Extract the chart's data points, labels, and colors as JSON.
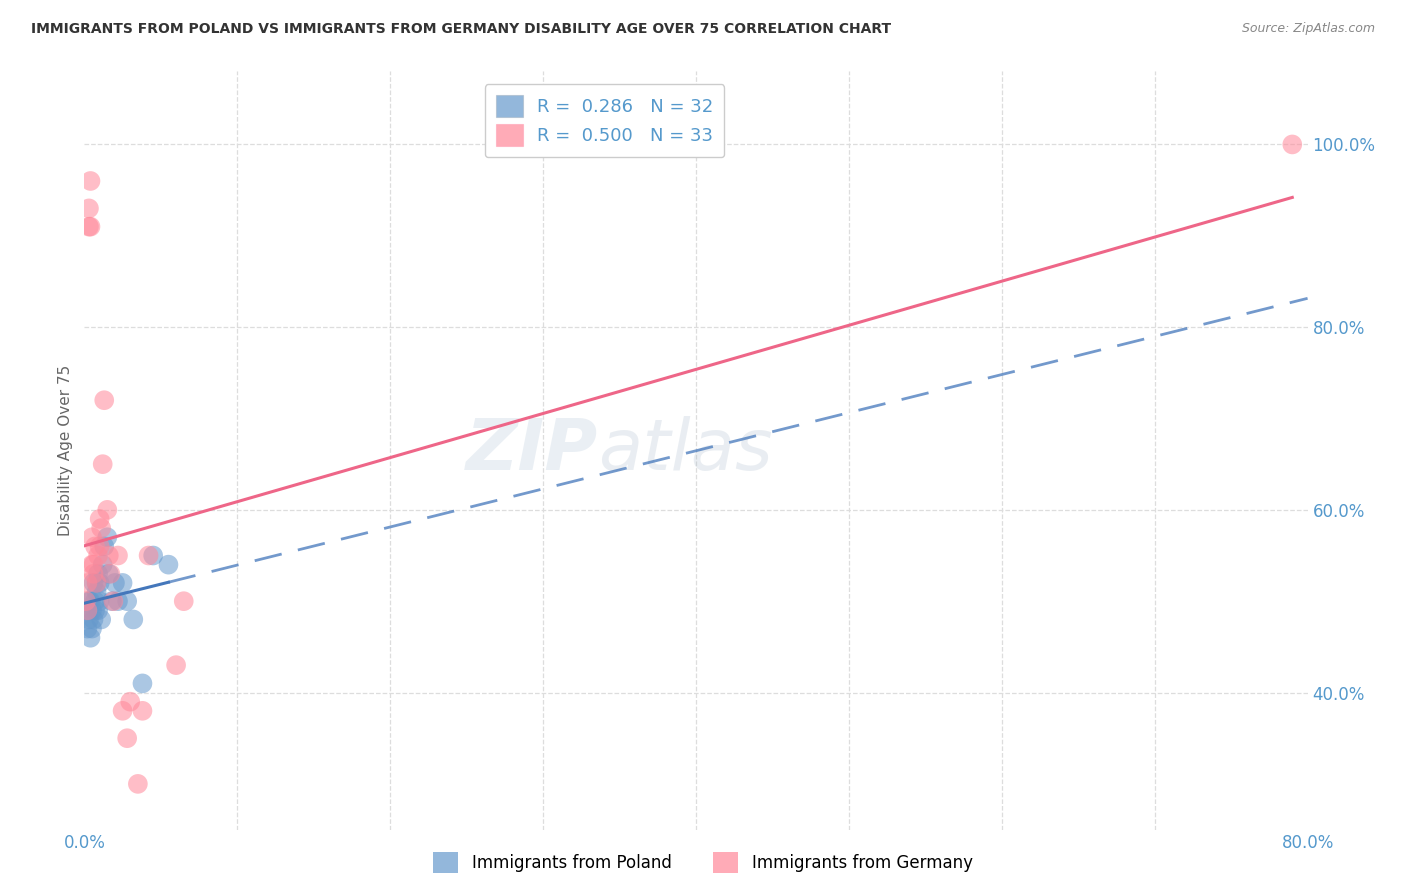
{
  "title": "IMMIGRANTS FROM POLAND VS IMMIGRANTS FROM GERMANY DISABILITY AGE OVER 75 CORRELATION CHART",
  "source": "Source: ZipAtlas.com",
  "ylabel": "Disability Age Over 75",
  "legend_R1": "0.286",
  "legend_N1": "32",
  "legend_R2": "0.500",
  "legend_N2": "33",
  "poland_color": "#6699CC",
  "germany_color": "#FF8899",
  "trendline_poland_color": "#4477BB",
  "trendline_germany_color": "#EE6688",
  "background_color": "#ffffff",
  "grid_color": "#dddddd",
  "axis_label_color": "#5599CC",
  "right_ytick_vals": [
    1.0,
    0.8,
    0.6,
    0.4
  ],
  "right_yticks": [
    "100.0%",
    "80.0%",
    "60.0%",
    "40.0%"
  ],
  "xlim": [
    0.0,
    0.8
  ],
  "ylim": [
    0.25,
    1.08
  ],
  "poland_x": [
    0.001,
    0.002,
    0.003,
    0.003,
    0.004,
    0.004,
    0.005,
    0.005,
    0.006,
    0.006,
    0.007,
    0.007,
    0.008,
    0.008,
    0.009,
    0.009,
    0.01,
    0.01,
    0.011,
    0.012,
    0.013,
    0.015,
    0.016,
    0.018,
    0.02,
    0.022,
    0.025,
    0.028,
    0.032,
    0.038,
    0.045,
    0.055
  ],
  "poland_y": [
    0.49,
    0.47,
    0.48,
    0.5,
    0.46,
    0.5,
    0.49,
    0.47,
    0.48,
    0.52,
    0.5,
    0.49,
    0.51,
    0.52,
    0.49,
    0.53,
    0.5,
    0.52,
    0.48,
    0.54,
    0.56,
    0.57,
    0.53,
    0.5,
    0.52,
    0.5,
    0.52,
    0.5,
    0.48,
    0.41,
    0.55,
    0.54
  ],
  "germany_x": [
    0.001,
    0.002,
    0.002,
    0.003,
    0.003,
    0.004,
    0.004,
    0.005,
    0.005,
    0.006,
    0.006,
    0.007,
    0.008,
    0.009,
    0.01,
    0.01,
    0.011,
    0.012,
    0.013,
    0.015,
    0.016,
    0.017,
    0.019,
    0.022,
    0.025,
    0.028,
    0.03,
    0.035,
    0.038,
    0.042,
    0.06,
    0.065,
    0.79
  ],
  "germany_y": [
    0.5,
    0.49,
    0.52,
    0.91,
    0.93,
    0.91,
    0.96,
    0.54,
    0.57,
    0.53,
    0.54,
    0.56,
    0.52,
    0.55,
    0.56,
    0.59,
    0.58,
    0.65,
    0.72,
    0.6,
    0.55,
    0.53,
    0.5,
    0.55,
    0.38,
    0.35,
    0.39,
    0.3,
    0.38,
    0.55,
    0.43,
    0.5,
    1.0
  ],
  "poland_trendline_x0": 0.0,
  "poland_trendline_x_solid_end": 0.055,
  "poland_trendline_x_dash_end": 0.8,
  "germany_trendline_x0": 0.0,
  "germany_trendline_x_end": 0.79
}
